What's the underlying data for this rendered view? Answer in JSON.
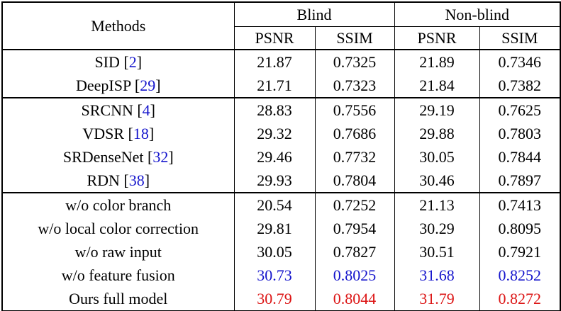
{
  "table": {
    "header": {
      "methods_label": "Methods",
      "group_labels": [
        "Blind",
        "Non-blind"
      ],
      "metric_labels": [
        "PSNR",
        "SSIM",
        "PSNR",
        "SSIM"
      ]
    },
    "groups": [
      {
        "rows": [
          {
            "method": "SID",
            "cite": "2",
            "color": "black",
            "values": [
              "21.87",
              "0.7325",
              "21.89",
              "0.7346"
            ]
          },
          {
            "method": "DeepISP",
            "cite": "29",
            "color": "black",
            "values": [
              "21.71",
              "0.7323",
              "21.84",
              "0.7382"
            ]
          }
        ]
      },
      {
        "rows": [
          {
            "method": "SRCNN",
            "cite": "4",
            "color": "black",
            "values": [
              "28.83",
              "0.7556",
              "29.19",
              "0.7625"
            ]
          },
          {
            "method": "VDSR",
            "cite": "18",
            "color": "black",
            "values": [
              "29.32",
              "0.7686",
              "29.88",
              "0.7803"
            ]
          },
          {
            "method": "SRDenseNet",
            "cite": "32",
            "color": "black",
            "values": [
              "29.46",
              "0.7732",
              "30.05",
              "0.7844"
            ]
          },
          {
            "method": "RDN",
            "cite": "38",
            "color": "black",
            "values": [
              "29.93",
              "0.7804",
              "30.46",
              "0.7897"
            ]
          }
        ]
      },
      {
        "rows": [
          {
            "method": "w/o color branch",
            "color": "black",
            "values": [
              "20.54",
              "0.7252",
              "21.13",
              "0.7413"
            ]
          },
          {
            "method": "w/o local color correction",
            "color": "black",
            "values": [
              "29.81",
              "0.7954",
              "30.29",
              "0.8095"
            ]
          },
          {
            "method": "w/o raw input",
            "color": "black",
            "values": [
              "30.05",
              "0.7827",
              "30.51",
              "0.7921"
            ]
          },
          {
            "method": "w/o feature fusion",
            "color": "blue",
            "values": [
              "30.73",
              "0.8025",
              "31.68",
              "0.8252"
            ]
          },
          {
            "method": "Ours full model",
            "color": "red",
            "values": [
              "30.79",
              "0.8044",
              "31.79",
              "0.8272"
            ]
          }
        ]
      }
    ]
  },
  "colors": {
    "text": "#000000",
    "border": "#000000",
    "background": "#FFFFFF",
    "highlight_blue": "#1414CC",
    "highlight_red": "#DC1414",
    "citation_blue": "#1414CC"
  }
}
